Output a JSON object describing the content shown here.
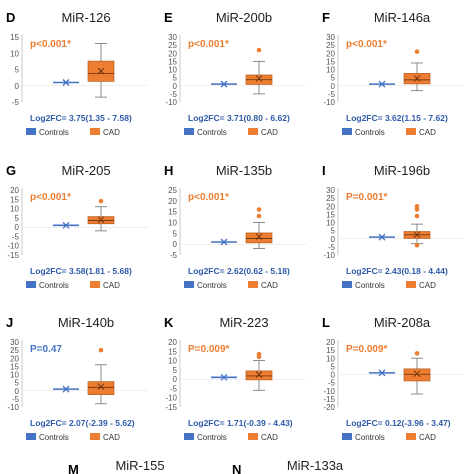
{
  "colors": {
    "controls": "#4472c4",
    "cad": "#ed7d31",
    "pvalue": "#ed7d31",
    "pvalue_ns": "#4472c4",
    "fc_text": "#2e5aa8"
  },
  "legend": {
    "controls": "Controls",
    "cad": "CAD"
  },
  "chart_data": [
    {
      "type": "box",
      "panel": "D",
      "title": "MiR-126",
      "p_text": "p<0.001*",
      "fc_text": "Log2FC= 3.75(1.35 - 7.58)",
      "ylim": [
        -5,
        15
      ],
      "yticks": [
        -5,
        0,
        5,
        10,
        15
      ],
      "controls": {
        "median": 1
      },
      "cad": {
        "q1": 1.35,
        "median": 3.75,
        "q3": 7.58,
        "mean": 4.5,
        "whisker_low": -3.5,
        "whisker_high": 13,
        "outliers": []
      }
    },
    {
      "type": "box",
      "panel": "E",
      "title": "MiR-200b",
      "p_text": "p<0.001*",
      "fc_text": "Log2FC= 3.71(0.80 - 6.62)",
      "ylim": [
        -10,
        30
      ],
      "yticks": [
        -10,
        -5,
        0,
        5,
        10,
        15,
        20,
        25,
        30
      ],
      "controls": {
        "median": 1
      },
      "cad": {
        "q1": 0.8,
        "median": 3.71,
        "q3": 6.62,
        "mean": 4.5,
        "whisker_low": -5,
        "whisker_high": 15,
        "outliers": [
          22
        ]
      }
    },
    {
      "type": "box",
      "panel": "F",
      "title": "MiR-146a",
      "p_text": "p<0.001*",
      "fc_text": "Log2FC= 3.62(1.15 - 7.62)",
      "ylim": [
        -10,
        30
      ],
      "yticks": [
        -10,
        -5,
        0,
        5,
        10,
        15,
        20,
        25,
        30
      ],
      "controls": {
        "median": 1
      },
      "cad": {
        "q1": 1.15,
        "median": 3.62,
        "q3": 7.62,
        "mean": 4.5,
        "whisker_low": -3,
        "whisker_high": 14,
        "outliers": [
          21
        ]
      }
    },
    {
      "type": "box",
      "panel": "G",
      "title": "MiR-205",
      "p_text": "p<0.001*",
      "fc_text": "Log2FC= 3.58(1.81 - 5.68)",
      "ylim": [
        -15,
        20
      ],
      "yticks": [
        -15,
        -10,
        -5,
        0,
        5,
        10,
        15,
        20
      ],
      "controls": {
        "median": 1
      },
      "cad": {
        "q1": 1.81,
        "median": 3.58,
        "q3": 5.68,
        "mean": 4,
        "whisker_low": -2,
        "whisker_high": 11,
        "outliers": [
          14
        ]
      }
    },
    {
      "type": "box",
      "panel": "H",
      "title": "MiR-135b",
      "p_text": "p<0.001*",
      "fc_text": "Log2FC= 2.62(0.62 - 5.18)",
      "ylim": [
        -5,
        25
      ],
      "yticks": [
        -5,
        0,
        5,
        10,
        15,
        20,
        25
      ],
      "controls": {
        "median": 1
      },
      "cad": {
        "q1": 0.62,
        "median": 2.62,
        "q3": 5.18,
        "mean": 3.5,
        "whisker_low": -2,
        "whisker_high": 10,
        "outliers": [
          13,
          16
        ]
      }
    },
    {
      "type": "box",
      "panel": "I",
      "title": "MiR-196b",
      "p_text": "P=0.001*",
      "fc_text": "Log2FC= 2.43(0.18 - 4.44)",
      "ylim": [
        -10,
        30
      ],
      "yticks": [
        -10,
        -5,
        0,
        5,
        10,
        15,
        20,
        25,
        30
      ],
      "controls": {
        "median": 1
      },
      "cad": {
        "q1": 0.18,
        "median": 2.43,
        "q3": 4.44,
        "mean": 2.5,
        "whisker_low": -3,
        "whisker_high": 9,
        "outliers": [
          14,
          18,
          20,
          -4
        ]
      }
    },
    {
      "type": "box",
      "panel": "J",
      "title": "MiR-140b",
      "p_text": "P=0.47",
      "p_significant": false,
      "fc_text": "Log2FC= 2.07(-2.39 - 5.62)",
      "ylim": [
        -10,
        30
      ],
      "yticks": [
        -10,
        -5,
        0,
        5,
        10,
        15,
        20,
        25,
        30
      ],
      "controls": {
        "median": 1
      },
      "cad": {
        "q1": -2.39,
        "median": 2.07,
        "q3": 5.62,
        "mean": 2.5,
        "whisker_low": -8,
        "whisker_high": 16,
        "outliers": [
          25
        ]
      }
    },
    {
      "type": "box",
      "panel": "K",
      "title": "MiR-223",
      "p_text": "P=0.009*",
      "fc_text": "Log2FC= 1.71(-0.39 - 4.43)",
      "ylim": [
        -15,
        20
      ],
      "yticks": [
        -15,
        -10,
        -5,
        0,
        5,
        10,
        15,
        20
      ],
      "controls": {
        "median": 1
      },
      "cad": {
        "q1": -0.39,
        "median": 1.71,
        "q3": 4.43,
        "mean": 2.5,
        "whisker_low": -6,
        "whisker_high": 10,
        "outliers": [
          12,
          13.5
        ]
      }
    },
    {
      "type": "box",
      "panel": "L",
      "title": "MiR-208a",
      "p_text": "P=0.009*",
      "fc_text": "Log2FC= 0.12(-3.96 - 3.47)",
      "ylim": [
        -20,
        20
      ],
      "yticks": [
        -20,
        -15,
        -10,
        -5,
        0,
        5,
        10,
        15,
        20
      ],
      "controls": {
        "median": 1
      },
      "cad": {
        "q1": -3.96,
        "median": 0.12,
        "q3": 3.47,
        "mean": 0.5,
        "whisker_low": -12,
        "whisker_high": 10,
        "outliers": [
          13
        ]
      }
    }
  ],
  "partial_panels": [
    {
      "panel": "M",
      "title": "MiR-155"
    },
    {
      "panel": "N",
      "title": "MiR-133a"
    }
  ]
}
